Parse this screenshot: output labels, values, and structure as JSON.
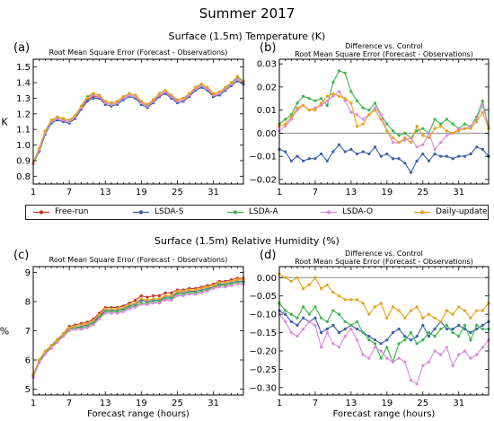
{
  "figure": {
    "title": "Summer 2017",
    "top_subtitle": "Surface (1.5m) Temperature (K)",
    "bottom_subtitle": "Surface (1.5m) Relative Humidity (%)"
  },
  "legend": [
    {
      "name": "Free-run",
      "color": "#c0392b"
    },
    {
      "name": "LSDA-S",
      "color": "#3b5fa8"
    },
    {
      "name": "LSDA-A",
      "color": "#3cb64a"
    },
    {
      "name": "LSDA-O",
      "color": "#dd88dd"
    },
    {
      "name": "Daily-update",
      "color": "#e6a21c"
    }
  ],
  "chart_data": [
    {
      "panel": "(a)",
      "type": "line",
      "title": "Root Mean Square Error (Forecast - Observations)",
      "xlabel": "",
      "ylabel": "K",
      "xlim": [
        1,
        36
      ],
      "ylim": [
        0.75,
        1.55
      ],
      "xticks": [
        1,
        7,
        13,
        19,
        25,
        31
      ],
      "yticks": [
        0.8,
        0.9,
        1.0,
        1.1,
        1.2,
        1.3,
        1.4,
        1.5
      ],
      "ytick_labels": [
        "0.8",
        "0.9",
        "1.0",
        "1.1",
        "1.2",
        "1.3",
        "1.4",
        "1.5"
      ],
      "grid": false,
      "zero_line": false,
      "x": [
        1,
        2,
        3,
        4,
        5,
        6,
        7,
        8,
        9,
        10,
        11,
        12,
        13,
        14,
        15,
        16,
        17,
        18,
        19,
        20,
        21,
        22,
        23,
        24,
        25,
        26,
        27,
        28,
        29,
        30,
        31,
        32,
        33,
        34,
        35,
        36
      ],
      "series": [
        {
          "name": "Free-run",
          "values": [
            0.88,
            0.97,
            1.08,
            1.15,
            1.17,
            1.16,
            1.15,
            1.18,
            1.24,
            1.29,
            1.31,
            1.31,
            1.27,
            1.26,
            1.27,
            1.3,
            1.32,
            1.31,
            1.27,
            1.25,
            1.28,
            1.32,
            1.34,
            1.31,
            1.28,
            1.29,
            1.32,
            1.36,
            1.38,
            1.36,
            1.32,
            1.33,
            1.36,
            1.39,
            1.42,
            1.4
          ]
        },
        {
          "name": "LSDA-S",
          "values": [
            0.88,
            0.96,
            1.07,
            1.14,
            1.16,
            1.15,
            1.14,
            1.17,
            1.23,
            1.28,
            1.3,
            1.3,
            1.26,
            1.25,
            1.26,
            1.29,
            1.31,
            1.3,
            1.26,
            1.24,
            1.27,
            1.31,
            1.33,
            1.3,
            1.27,
            1.28,
            1.31,
            1.35,
            1.37,
            1.35,
            1.31,
            1.32,
            1.35,
            1.38,
            1.41,
            1.39
          ]
        },
        {
          "name": "LSDA-A",
          "values": [
            0.89,
            0.97,
            1.09,
            1.16,
            1.18,
            1.17,
            1.16,
            1.19,
            1.25,
            1.31,
            1.33,
            1.32,
            1.28,
            1.27,
            1.28,
            1.31,
            1.33,
            1.32,
            1.28,
            1.26,
            1.29,
            1.33,
            1.35,
            1.32,
            1.29,
            1.3,
            1.33,
            1.37,
            1.39,
            1.37,
            1.33,
            1.34,
            1.37,
            1.4,
            1.43,
            1.41
          ]
        },
        {
          "name": "LSDA-O",
          "values": [
            0.88,
            0.97,
            1.08,
            1.15,
            1.17,
            1.16,
            1.15,
            1.18,
            1.24,
            1.3,
            1.32,
            1.31,
            1.27,
            1.26,
            1.27,
            1.3,
            1.32,
            1.31,
            1.27,
            1.25,
            1.28,
            1.32,
            1.34,
            1.31,
            1.28,
            1.29,
            1.32,
            1.36,
            1.38,
            1.36,
            1.32,
            1.33,
            1.36,
            1.39,
            1.42,
            1.4
          ]
        },
        {
          "name": "Daily-update",
          "values": [
            0.89,
            0.98,
            1.09,
            1.16,
            1.18,
            1.17,
            1.16,
            1.19,
            1.25,
            1.3,
            1.33,
            1.32,
            1.28,
            1.27,
            1.28,
            1.31,
            1.33,
            1.32,
            1.28,
            1.26,
            1.29,
            1.33,
            1.35,
            1.32,
            1.29,
            1.3,
            1.33,
            1.37,
            1.39,
            1.37,
            1.33,
            1.34,
            1.37,
            1.4,
            1.44,
            1.41
          ]
        }
      ]
    },
    {
      "panel": "(b)",
      "type": "line",
      "title": "Difference vs. Control",
      "subtitle": "Root Mean Square Error (Forecast - Observations)",
      "xlabel": "",
      "ylabel": "",
      "xlim": [
        1,
        36
      ],
      "ylim": [
        -0.022,
        0.032
      ],
      "xticks": [
        1,
        7,
        13,
        19,
        25,
        31
      ],
      "yticks": [
        -0.02,
        -0.01,
        0.0,
        0.01,
        0.02,
        0.03
      ],
      "ytick_labels": [
        "−0.02",
        "−0.01",
        "0.00",
        "0.01",
        "0.02",
        "0.03"
      ],
      "grid": false,
      "zero_line": true,
      "x": [
        1,
        2,
        3,
        4,
        5,
        6,
        7,
        8,
        9,
        10,
        11,
        12,
        13,
        14,
        15,
        16,
        17,
        18,
        19,
        20,
        21,
        22,
        23,
        24,
        25,
        26,
        27,
        28,
        29,
        30,
        31,
        32,
        33,
        34,
        35,
        36
      ],
      "series": [
        {
          "name": "LSDA-S",
          "values": [
            -0.007,
            -0.008,
            -0.012,
            -0.01,
            -0.012,
            -0.011,
            -0.011,
            -0.009,
            -0.012,
            -0.008,
            -0.005,
            -0.008,
            -0.007,
            -0.009,
            -0.008,
            -0.009,
            -0.006,
            -0.01,
            -0.009,
            -0.011,
            -0.011,
            -0.013,
            -0.017,
            -0.012,
            -0.009,
            -0.012,
            -0.009,
            -0.01,
            -0.01,
            -0.011,
            -0.01,
            -0.01,
            -0.009,
            -0.006,
            -0.007,
            -0.01
          ]
        },
        {
          "name": "LSDA-A",
          "values": [
            0.004,
            0.006,
            0.008,
            0.013,
            0.016,
            0.015,
            0.014,
            0.015,
            0.012,
            0.022,
            0.027,
            0.026,
            0.018,
            0.014,
            0.011,
            0.01,
            0.013,
            0.008,
            0.004,
            0.001,
            -0.001,
            0.0,
            -0.002,
            0.001,
            0.002,
            0.0,
            0.006,
            0.004,
            0.006,
            0.004,
            0.002,
            0.004,
            0.003,
            0.007,
            0.014,
            0.002
          ]
        },
        {
          "name": "LSDA-O",
          "values": [
            0.001,
            0.003,
            0.006,
            0.01,
            0.012,
            0.01,
            0.011,
            0.012,
            0.014,
            0.016,
            0.018,
            0.014,
            0.009,
            0.008,
            0.006,
            0.008,
            0.011,
            0.008,
            0.001,
            -0.004,
            -0.004,
            -0.003,
            -0.002,
            -0.006,
            -0.005,
            0.0,
            -0.007,
            -0.004,
            -0.001,
            0.0,
            0.002,
            0.002,
            0.003,
            0.006,
            0.012,
            0.003
          ]
        },
        {
          "name": "Daily-update",
          "values": [
            0.003,
            0.004,
            0.007,
            0.011,
            0.012,
            0.01,
            0.01,
            0.013,
            0.016,
            0.017,
            0.016,
            0.015,
            0.013,
            0.003,
            0.004,
            0.008,
            0.01,
            0.006,
            0.001,
            -0.002,
            -0.004,
            -0.002,
            -0.004,
            0.003,
            -0.001,
            -0.002,
            0.002,
            0.003,
            0.001,
            0.0,
            0.001,
            0.002,
            0.002,
            0.005,
            0.009,
            0.002
          ]
        }
      ]
    },
    {
      "panel": "(c)",
      "type": "line",
      "title": "Root Mean Square Error (Forecast - Observations)",
      "xlabel": "Forecast range (hours)",
      "ylabel": "%",
      "xlim": [
        1,
        36
      ],
      "ylim": [
        4.8,
        9.2
      ],
      "xticks": [
        1,
        7,
        13,
        19,
        25,
        31
      ],
      "yticks": [
        5,
        6,
        7,
        8,
        9
      ],
      "ytick_labels": [
        "5",
        "6",
        "7",
        "8",
        "9"
      ],
      "grid": false,
      "zero_line": false,
      "x": [
        1,
        2,
        3,
        4,
        5,
        6,
        7,
        8,
        9,
        10,
        11,
        12,
        13,
        14,
        15,
        16,
        17,
        18,
        19,
        20,
        21,
        22,
        23,
        24,
        25,
        26,
        27,
        28,
        29,
        30,
        31,
        32,
        33,
        34,
        35,
        36
      ],
      "series": [
        {
          "name": "Free-run",
          "values": [
            5.5,
            6.0,
            6.3,
            6.5,
            6.7,
            6.9,
            7.15,
            7.2,
            7.25,
            7.3,
            7.4,
            7.6,
            7.8,
            7.8,
            7.8,
            7.85,
            7.95,
            8.05,
            8.2,
            8.15,
            8.2,
            8.2,
            8.3,
            8.3,
            8.4,
            8.4,
            8.45,
            8.45,
            8.5,
            8.55,
            8.6,
            8.7,
            8.7,
            8.75,
            8.8,
            8.8
          ]
        },
        {
          "name": "LSDA-S",
          "values": [
            5.45,
            5.95,
            6.25,
            6.45,
            6.65,
            6.85,
            7.1,
            7.1,
            7.15,
            7.2,
            7.3,
            7.5,
            7.7,
            7.7,
            7.7,
            7.75,
            7.85,
            7.9,
            8.05,
            8.0,
            8.05,
            8.05,
            8.15,
            8.15,
            8.3,
            8.3,
            8.35,
            8.35,
            8.4,
            8.45,
            8.5,
            8.6,
            8.6,
            8.65,
            8.7,
            8.7
          ]
        },
        {
          "name": "LSDA-A",
          "values": [
            5.45,
            5.95,
            6.25,
            6.45,
            6.65,
            6.85,
            7.05,
            7.1,
            7.1,
            7.15,
            7.25,
            7.45,
            7.65,
            7.65,
            7.65,
            7.7,
            7.8,
            7.85,
            7.95,
            7.95,
            8.0,
            8.0,
            8.1,
            8.1,
            8.25,
            8.25,
            8.3,
            8.3,
            8.35,
            8.4,
            8.5,
            8.55,
            8.55,
            8.6,
            8.65,
            8.65
          ]
        },
        {
          "name": "LSDA-O",
          "values": [
            5.4,
            5.9,
            6.2,
            6.4,
            6.6,
            6.8,
            7.0,
            7.05,
            7.05,
            7.1,
            7.2,
            7.4,
            7.6,
            7.6,
            7.6,
            7.65,
            7.75,
            7.8,
            7.9,
            7.9,
            7.95,
            7.95,
            8.05,
            8.05,
            8.2,
            8.2,
            8.25,
            8.25,
            8.3,
            8.35,
            8.45,
            8.5,
            8.5,
            8.55,
            8.6,
            8.6
          ]
        },
        {
          "name": "Daily-update",
          "values": [
            5.5,
            6.0,
            6.3,
            6.5,
            6.7,
            6.9,
            7.1,
            7.15,
            7.2,
            7.25,
            7.35,
            7.55,
            7.75,
            7.75,
            7.75,
            7.8,
            7.9,
            7.95,
            8.1,
            8.05,
            8.1,
            8.1,
            8.2,
            8.2,
            8.35,
            8.35,
            8.4,
            8.4,
            8.45,
            8.5,
            8.55,
            8.65,
            8.65,
            8.7,
            8.75,
            8.75
          ]
        }
      ]
    },
    {
      "panel": "(d)",
      "type": "line",
      "title": "Difference vs. Control",
      "subtitle": "Root Mean Square Error (Forecast - Observations)",
      "xlabel": "Forecast range (hours)",
      "ylabel": "",
      "xlim": [
        1,
        36
      ],
      "ylim": [
        -0.32,
        0.03
      ],
      "xticks": [
        1,
        7,
        13,
        19,
        25,
        31
      ],
      "yticks": [
        -0.3,
        -0.25,
        -0.2,
        -0.15,
        -0.1,
        -0.05,
        0.0
      ],
      "ytick_labels": [
        "−0.30",
        "−0.25",
        "−0.20",
        "−0.15",
        "−0.10",
        "−0.05",
        "0.00"
      ],
      "grid": false,
      "zero_line": true,
      "x": [
        1,
        2,
        3,
        4,
        5,
        6,
        7,
        8,
        9,
        10,
        11,
        12,
        13,
        14,
        15,
        16,
        17,
        18,
        19,
        20,
        21,
        22,
        23,
        24,
        25,
        26,
        27,
        28,
        29,
        30,
        31,
        32,
        33,
        34,
        35,
        36
      ],
      "series": [
        {
          "name": "LSDA-S",
          "values": [
            -0.09,
            -0.1,
            -0.12,
            -0.13,
            -0.11,
            -0.12,
            -0.11,
            -0.15,
            -0.14,
            -0.13,
            -0.15,
            -0.14,
            -0.13,
            -0.14,
            -0.15,
            -0.16,
            -0.17,
            -0.18,
            -0.17,
            -0.15,
            -0.14,
            -0.16,
            -0.17,
            -0.16,
            -0.13,
            -0.16,
            -0.14,
            -0.12,
            -0.14,
            -0.14,
            -0.13,
            -0.14,
            -0.15,
            -0.14,
            -0.13,
            -0.12
          ]
        },
        {
          "name": "LSDA-A",
          "values": [
            -0.07,
            -0.09,
            -0.1,
            -0.11,
            -0.08,
            -0.1,
            -0.08,
            -0.11,
            -0.12,
            -0.09,
            -0.1,
            -0.12,
            -0.13,
            -0.12,
            -0.15,
            -0.17,
            -0.18,
            -0.22,
            -0.19,
            -0.23,
            -0.18,
            -0.17,
            -0.15,
            -0.18,
            -0.17,
            -0.15,
            -0.16,
            -0.14,
            -0.13,
            -0.15,
            -0.16,
            -0.13,
            -0.17,
            -0.13,
            -0.14,
            -0.14
          ]
        },
        {
          "name": "LSDA-O",
          "values": [
            -0.1,
            -0.12,
            -0.15,
            -0.16,
            -0.14,
            -0.12,
            -0.13,
            -0.19,
            -0.15,
            -0.18,
            -0.19,
            -0.16,
            -0.14,
            -0.17,
            -0.21,
            -0.22,
            -0.19,
            -0.2,
            -0.22,
            -0.23,
            -0.22,
            -0.23,
            -0.28,
            -0.29,
            -0.24,
            -0.23,
            -0.2,
            -0.21,
            -0.19,
            -0.24,
            -0.21,
            -0.2,
            -0.22,
            -0.21,
            -0.19,
            -0.17
          ]
        },
        {
          "name": "Daily-update",
          "values": [
            0.01,
            0.0,
            -0.01,
            0.0,
            -0.03,
            -0.02,
            0.0,
            -0.03,
            -0.02,
            -0.04,
            -0.05,
            -0.06,
            -0.06,
            -0.06,
            -0.07,
            -0.1,
            -0.08,
            -0.07,
            -0.11,
            -0.08,
            -0.09,
            -0.11,
            -0.09,
            -0.08,
            -0.11,
            -0.1,
            -0.11,
            -0.12,
            -0.09,
            -0.1,
            -0.08,
            -0.09,
            -0.11,
            -0.09,
            -0.09,
            -0.07
          ]
        }
      ]
    }
  ]
}
